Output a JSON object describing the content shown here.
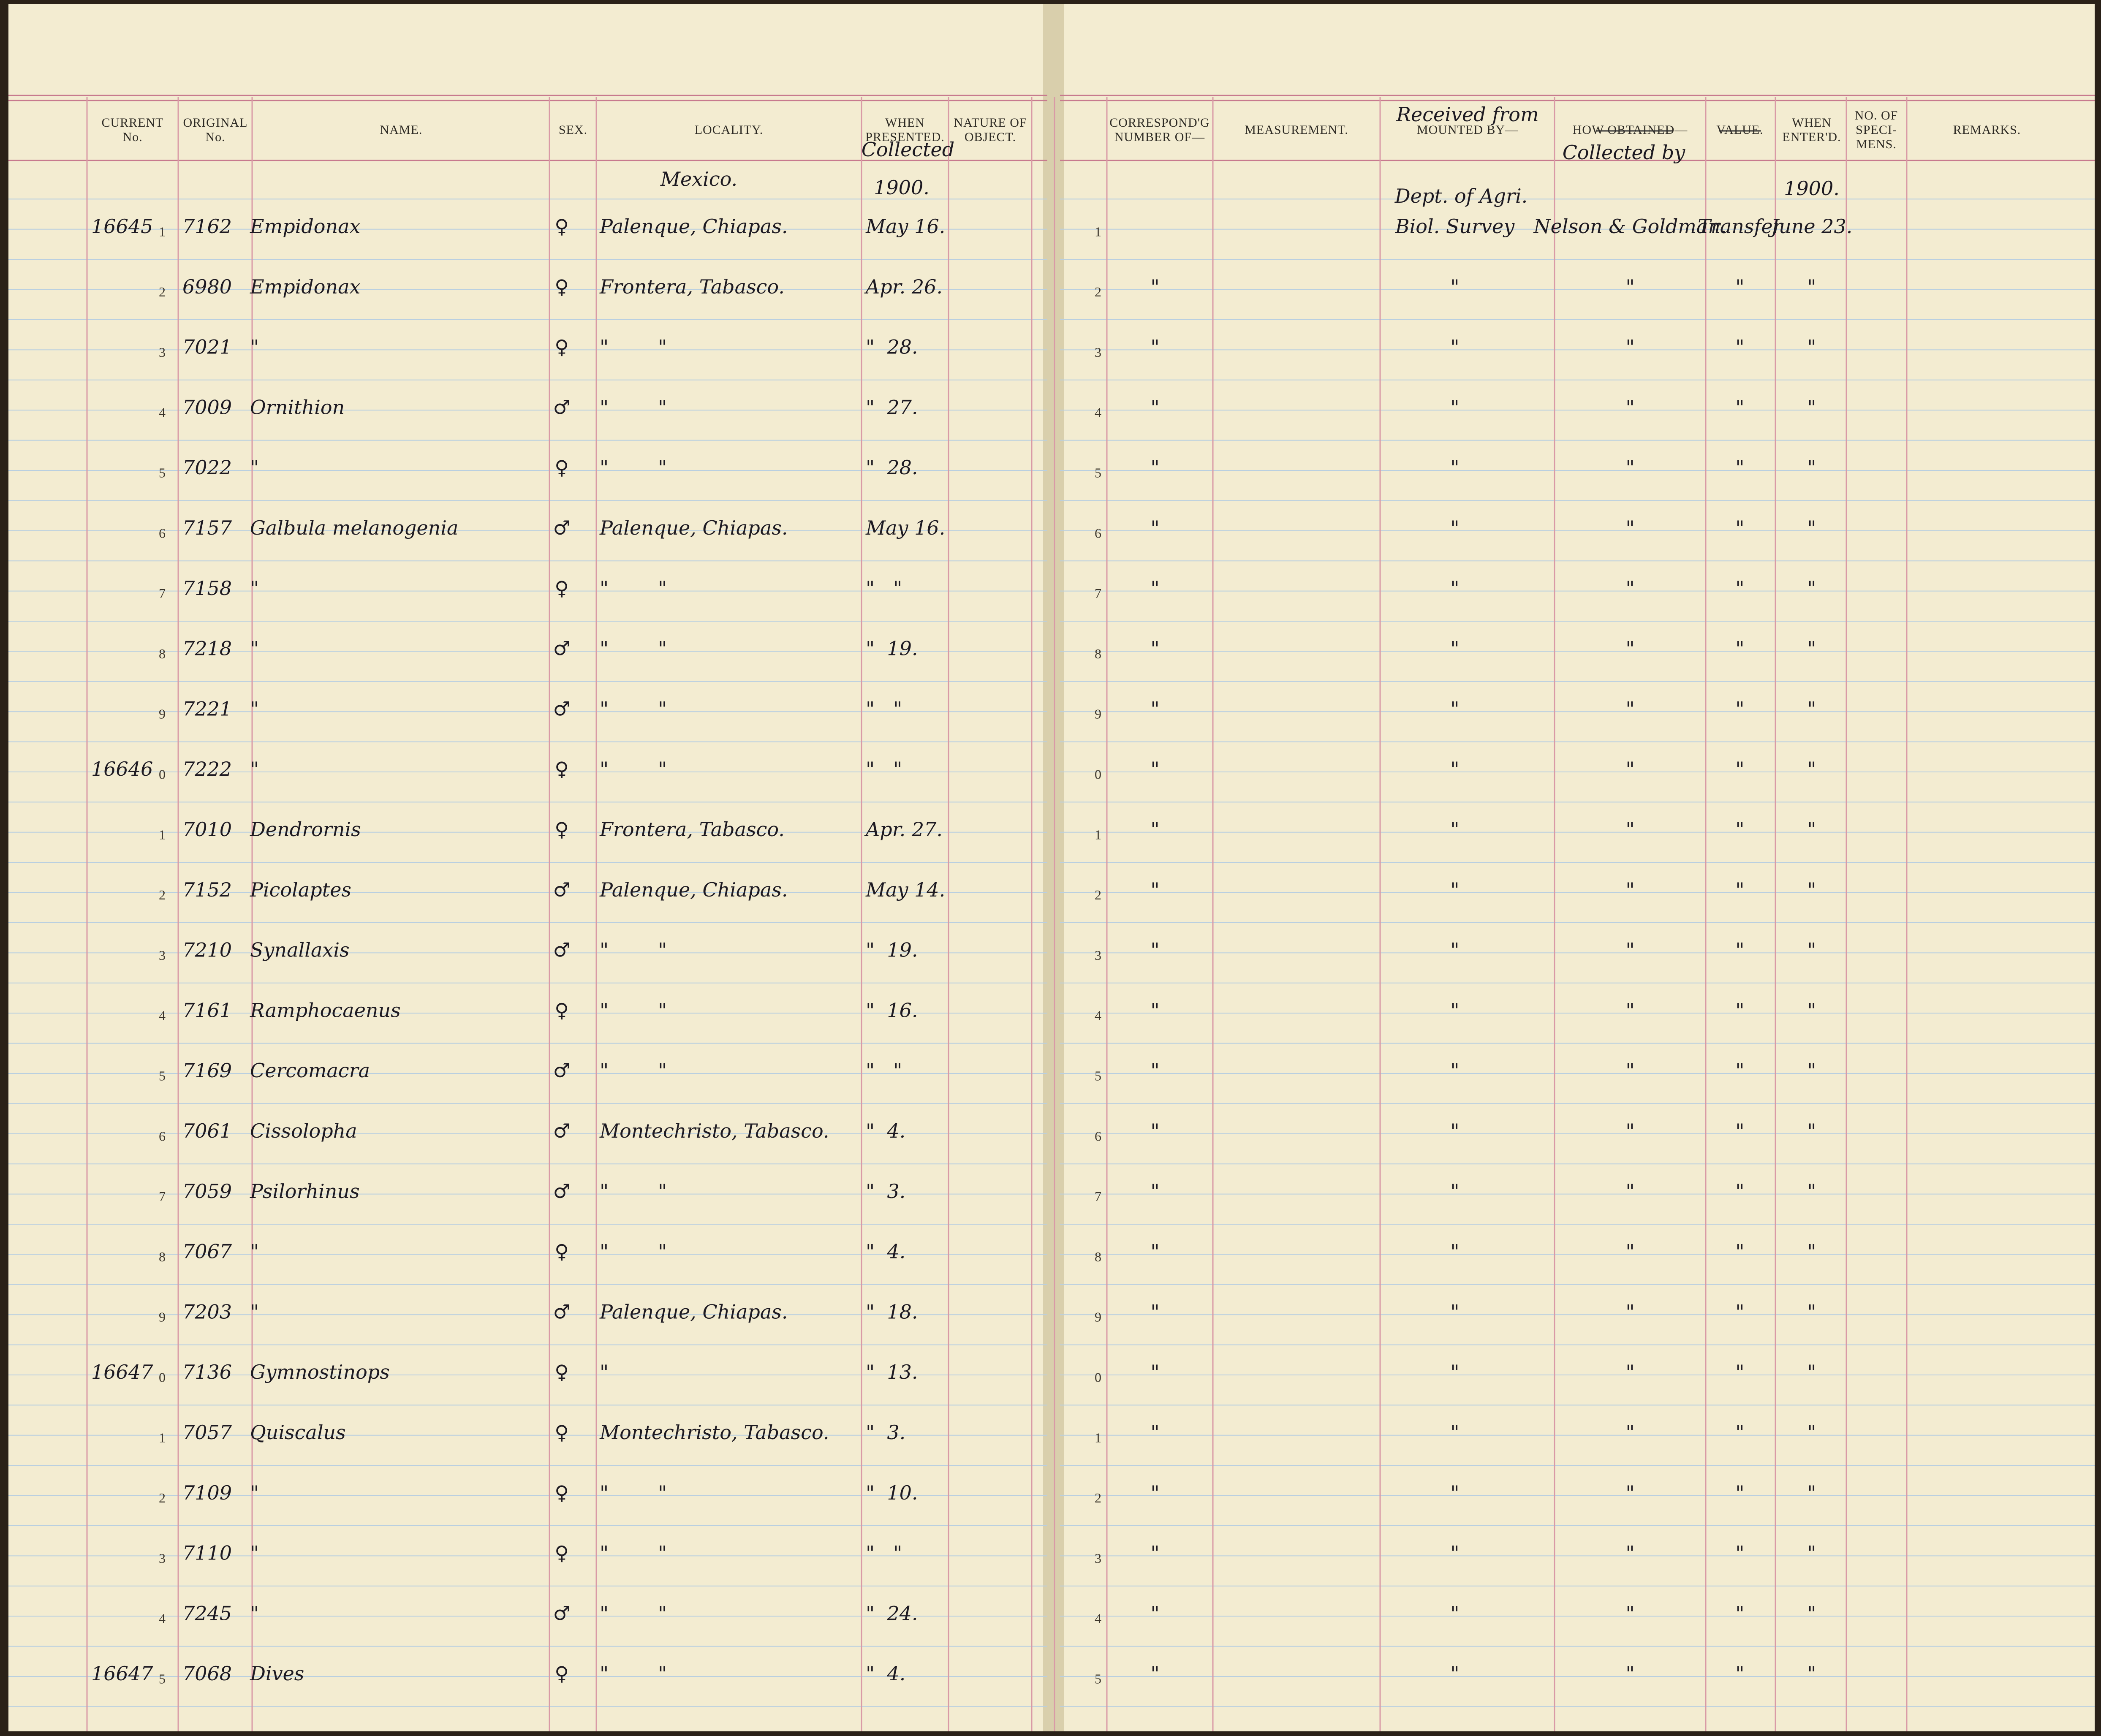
{
  "left_page": {
    "headers": [
      [
        "CURRENT",
        "No."
      ],
      [
        "ORIGINAL",
        "No."
      ],
      [
        "NAME."
      ],
      [
        "SEX."
      ],
      [
        "LOCALITY."
      ],
      [
        "WHEN",
        "PRESENTED."
      ],
      [
        "NATURE OF",
        "OBJECT."
      ]
    ],
    "annotations": {
      "presented": "Collected",
      "locality": "Mexico.",
      "year": "1900."
    },
    "rows": [
      {
        "current": "16645",
        "row": "1",
        "original": "7162",
        "name": "Empidonax",
        "sex": "♀",
        "locality": "Palenque, Chiapas.",
        "date": "May 16."
      },
      {
        "row": "2",
        "original": "6980",
        "name": "Empidonax",
        "sex": "♀",
        "locality": "Frontera, Tabasco.",
        "date": "Apr. 26."
      },
      {
        "row": "3",
        "original": "7021",
        "name": "\"",
        "sex": "♀",
        "locality": "\"        \"",
        "date": "\"  28."
      },
      {
        "row": "4",
        "original": "7009",
        "name": "Ornithion",
        "sex": "♂",
        "locality": "\"        \"",
        "date": "\"  27."
      },
      {
        "row": "5",
        "original": "7022",
        "name": "\"",
        "sex": "♀",
        "locality": "\"        \"",
        "date": "\"  28."
      },
      {
        "row": "6",
        "original": "7157",
        "name": "Galbula melanogenia",
        "sex": "♂",
        "locality": "Palenque, Chiapas.",
        "date": "May 16."
      },
      {
        "row": "7",
        "original": "7158",
        "name": "\"",
        "sex": "♀",
        "locality": "\"        \"",
        "date": "\"   \""
      },
      {
        "row": "8",
        "original": "7218",
        "name": "\"",
        "sex": "♂",
        "locality": "\"        \"",
        "date": "\"  19."
      },
      {
        "row": "9",
        "original": "7221",
        "name": "\"",
        "sex": "♂",
        "locality": "\"        \"",
        "date": "\"   \""
      },
      {
        "current": "16646",
        "row": "0",
        "original": "7222",
        "name": "\"",
        "sex": "♀",
        "locality": "\"        \"",
        "date": "\"   \""
      },
      {
        "row": "1",
        "original": "7010",
        "name": "Dendrornis",
        "sex": "♀",
        "locality": "Frontera, Tabasco.",
        "date": "Apr. 27."
      },
      {
        "row": "2",
        "original": "7152",
        "name": "Picolaptes",
        "sex": "♂",
        "locality": "Palenque, Chiapas.",
        "date": "May 14."
      },
      {
        "row": "3",
        "original": "7210",
        "name": "Synallaxis",
        "sex": "♂",
        "locality": "\"        \"",
        "date": "\"  19."
      },
      {
        "row": "4",
        "original": "7161",
        "name": "Ramphocaenus",
        "sex": "♀",
        "locality": "\"        \"",
        "date": "\"  16."
      },
      {
        "row": "5",
        "original": "7169",
        "name": "Cercomacra",
        "sex": "♂",
        "locality": "\"        \"",
        "date": "\"   \""
      },
      {
        "row": "6",
        "original": "7061",
        "name": "Cissolopha",
        "sex": "♂",
        "locality": "Montechristo, Tabasco.",
        "date": "\"  4."
      },
      {
        "row": "7",
        "original": "7059",
        "name": "Psilorhinus",
        "sex": "♂",
        "locality": "\"        \"",
        "date": "\"  3."
      },
      {
        "row": "8",
        "original": "7067",
        "name": "\"",
        "sex": "♀",
        "locality": "\"        \"",
        "date": "\"  4."
      },
      {
        "row": "9",
        "original": "7203",
        "name": "\"",
        "sex": "♂",
        "locality": "Palenque, Chiapas.",
        "date": "\"  18."
      },
      {
        "current": "16647",
        "row": "0",
        "original": "7136",
        "name": "Gymnostinops",
        "sex": "♀",
        "locality": "\"",
        "date": "\"  13."
      },
      {
        "row": "1",
        "original": "7057",
        "name": "Quiscalus",
        "sex": "♀",
        "locality": "Montechristo, Tabasco.",
        "date": "\"  3."
      },
      {
        "row": "2",
        "original": "7109",
        "name": "\"",
        "sex": "♀",
        "locality": "\"        \"",
        "date": "\"  10."
      },
      {
        "row": "3",
        "original": "7110",
        "name": "\"",
        "sex": "♀",
        "locality": "\"        \"",
        "date": "\"   \""
      },
      {
        "row": "4",
        "original": "7245",
        "name": "\"",
        "sex": "♂",
        "locality": "\"        \"",
        "date": "\"  24."
      },
      {
        "current": "16647",
        "row": "5",
        "original": "7068",
        "name": "Dives",
        "sex": "♀",
        "locality": "\"        \"",
        "date": "\"  4."
      }
    ]
  },
  "right_page": {
    "headers": [
      [
        "CORRESPOND'G",
        "NUMBER OF—"
      ],
      [
        "MEASUREMENT."
      ],
      [
        "MOUNTED BY—"
      ],
      [
        "HOW OBTAINED—"
      ],
      [
        "VALUE."
      ],
      [
        "WHEN",
        "ENTER'D."
      ],
      [
        "NO. OF",
        "SPECI-",
        "MENS."
      ],
      [
        "REMARKS."
      ]
    ],
    "annotations": {
      "mounted": "Received from",
      "obtained": "Collected by",
      "department": "Dept. of Agri.",
      "year": "1900."
    },
    "rows": [
      {
        "row": "1",
        "mounted": "Biol. Survey",
        "obtained": "Nelson & Goldman.",
        "value": "Transfer",
        "entered": "June 23."
      },
      {
        "row": "2",
        "correspond": "\"",
        "mounted": "\"",
        "obtained": "\"",
        "value": "\"",
        "entered": "\""
      },
      {
        "row": "3",
        "correspond": "\"",
        "mounted": "\"",
        "obtained": "\"",
        "value": "\"",
        "entered": "\""
      },
      {
        "row": "4",
        "correspond": "\"",
        "mounted": "\"",
        "obtained": "\"",
        "value": "\"",
        "entered": "\""
      },
      {
        "row": "5",
        "correspond": "\"",
        "mounted": "\"",
        "obtained": "\"",
        "value": "\"",
        "entered": "\""
      },
      {
        "row": "6",
        "correspond": "\"",
        "mounted": "\"",
        "obtained": "\"",
        "value": "\"",
        "entered": "\""
      },
      {
        "row": "7",
        "correspond": "\"",
        "mounted": "\"",
        "obtained": "\"",
        "value": "\"",
        "entered": "\""
      },
      {
        "row": "8",
        "correspond": "\"",
        "mounted": "\"",
        "obtained": "\"",
        "value": "\"",
        "entered": "\""
      },
      {
        "row": "9",
        "correspond": "\"",
        "mounted": "\"",
        "obtained": "\"",
        "value": "\"",
        "entered": "\""
      },
      {
        "row": "0",
        "correspond": "\"",
        "mounted": "\"",
        "obtained": "\"",
        "value": "\"",
        "entered": "\""
      },
      {
        "row": "1",
        "correspond": "\"",
        "mounted": "\"",
        "obtained": "\"",
        "value": "\"",
        "entered": "\""
      },
      {
        "row": "2",
        "correspond": "\"",
        "mounted": "\"",
        "obtained": "\"",
        "value": "\"",
        "entered": "\""
      },
      {
        "row": "3",
        "correspond": "\"",
        "mounted": "\"",
        "obtained": "\"",
        "value": "\"",
        "entered": "\""
      },
      {
        "row": "4",
        "correspond": "\"",
        "mounted": "\"",
        "obtained": "\"",
        "value": "\"",
        "entered": "\""
      },
      {
        "row": "5",
        "correspond": "\"",
        "mounted": "\"",
        "obtained": "\"",
        "value": "\"",
        "entered": "\""
      },
      {
        "row": "6",
        "correspond": "\"",
        "mounted": "\"",
        "obtained": "\"",
        "value": "\"",
        "entered": "\""
      },
      {
        "row": "7",
        "correspond": "\"",
        "mounted": "\"",
        "obtained": "\"",
        "value": "\"",
        "entered": "\""
      },
      {
        "row": "8",
        "correspond": "\"",
        "mounted": "\"",
        "obtained": "\"",
        "value": "\"",
        "entered": "\""
      },
      {
        "row": "9",
        "correspond": "\"",
        "mounted": "\"",
        "obtained": "\"",
        "value": "\"",
        "entered": "\""
      },
      {
        "row": "0",
        "correspond": "\"",
        "mounted": "\"",
        "obtained": "\"",
        "value": "\"",
        "entered": "\""
      },
      {
        "row": "1",
        "correspond": "\"",
        "mounted": "\"",
        "obtained": "\"",
        "value": "\"",
        "entered": "\""
      },
      {
        "row": "2",
        "correspond": "\"",
        "mounted": "\"",
        "obtained": "\"",
        "value": "\"",
        "entered": "\""
      },
      {
        "row": "3",
        "correspond": "\"",
        "mounted": "\"",
        "obtained": "\"",
        "value": "\"",
        "entered": "\""
      },
      {
        "row": "4",
        "correspond": "\"",
        "mounted": "\"",
        "obtained": "\"",
        "value": "\"",
        "entered": "\""
      },
      {
        "row": "5",
        "correspond": "\"",
        "mounted": "\"",
        "obtained": "\"",
        "value": "\"",
        "entered": "\""
      }
    ]
  }
}
